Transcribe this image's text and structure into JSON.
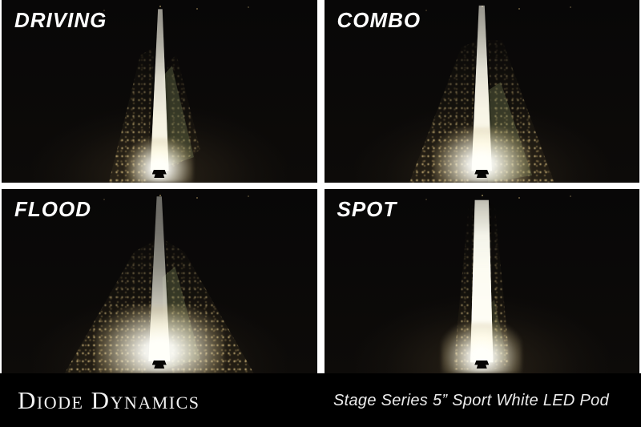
{
  "panels": [
    {
      "label": "DRIVING",
      "beam_pattern": "driving"
    },
    {
      "label": "COMBO",
      "beam_pattern": "combo"
    },
    {
      "label": "FLOOD",
      "beam_pattern": "flood"
    },
    {
      "label": "SPOT",
      "beam_pattern": "spot"
    }
  ],
  "footer": {
    "brand": "Diode Dynamics",
    "product": "Stage Series 5” Sport White LED Pod"
  },
  "colors": {
    "background": "#000000",
    "divider": "#ffffff",
    "beam_white": "#fffdf2",
    "grass_spill": "#ac9864",
    "label_text": "#ffffff"
  }
}
